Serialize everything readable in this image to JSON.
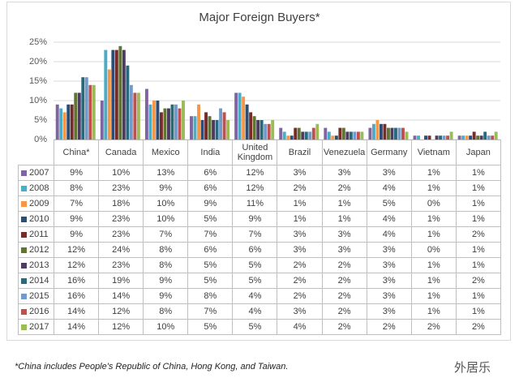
{
  "chart_data": {
    "type": "bar",
    "title": "Major Foreign Buyers*",
    "categories": [
      "China*",
      "Canada",
      "Mexico",
      "India",
      "United Kingdom",
      "Brazil",
      "Venezuela",
      "Germany",
      "Vietnam",
      "Japan"
    ],
    "series": [
      {
        "name": "2007",
        "color": "#8064a2",
        "values": [
          9,
          10,
          13,
          6,
          12,
          3,
          3,
          3,
          1,
          1
        ],
        "value_labels": [
          "9%",
          "10%",
          "13%",
          "6%",
          "12%",
          "3%",
          "3%",
          "3%",
          "1%",
          "1%"
        ]
      },
      {
        "name": "2008",
        "color": "#4bacc6",
        "values": [
          8,
          23,
          9,
          6,
          12,
          2,
          2,
          4,
          1,
          1
        ],
        "value_labels": [
          "8%",
          "23%",
          "9%",
          "6%",
          "12%",
          "2%",
          "2%",
          "4%",
          "1%",
          "1%"
        ]
      },
      {
        "name": "2009",
        "color": "#f79646",
        "values": [
          7,
          18,
          10,
          9,
          11,
          1,
          1,
          5,
          0,
          1
        ],
        "value_labels": [
          "7%",
          "18%",
          "10%",
          "9%",
          "11%",
          "1%",
          "1%",
          "5%",
          "0%",
          "1%"
        ]
      },
      {
        "name": "2010",
        "color": "#2c4d75",
        "values": [
          9,
          23,
          10,
          5,
          9,
          1,
          1,
          4,
          1,
          1
        ],
        "value_labels": [
          "9%",
          "23%",
          "10%",
          "5%",
          "9%",
          "1%",
          "1%",
          "4%",
          "1%",
          "1%"
        ]
      },
      {
        "name": "2011",
        "color": "#772c2a",
        "values": [
          9,
          23,
          7,
          7,
          7,
          3,
          3,
          4,
          1,
          2
        ],
        "value_labels": [
          "9%",
          "23%",
          "7%",
          "7%",
          "7%",
          "3%",
          "3%",
          "4%",
          "1%",
          "2%"
        ]
      },
      {
        "name": "2012",
        "color": "#5f7530",
        "values": [
          12,
          24,
          8,
          6,
          6,
          3,
          3,
          3,
          0,
          1
        ],
        "value_labels": [
          "12%",
          "24%",
          "8%",
          "6%",
          "6%",
          "3%",
          "3%",
          "3%",
          "0%",
          "1%"
        ]
      },
      {
        "name": "2013",
        "color": "#4d3b62",
        "values": [
          12,
          23,
          8,
          5,
          5,
          2,
          2,
          3,
          1,
          1
        ],
        "value_labels": [
          "12%",
          "23%",
          "8%",
          "5%",
          "5%",
          "2%",
          "2%",
          "3%",
          "1%",
          "1%"
        ]
      },
      {
        "name": "2014",
        "color": "#276a7c",
        "values": [
          16,
          19,
          9,
          5,
          5,
          2,
          2,
          3,
          1,
          2
        ],
        "value_labels": [
          "16%",
          "19%",
          "9%",
          "5%",
          "5%",
          "2%",
          "2%",
          "3%",
          "1%",
          "2%"
        ]
      },
      {
        "name": "2015",
        "color": "#729aca",
        "values": [
          16,
          14,
          9,
          8,
          4,
          2,
          2,
          3,
          1,
          1
        ],
        "value_labels": [
          "16%",
          "14%",
          "9%",
          "8%",
          "4%",
          "2%",
          "2%",
          "3%",
          "1%",
          "1%"
        ]
      },
      {
        "name": "2016",
        "color": "#c0504d",
        "values": [
          14,
          12,
          8,
          7,
          4,
          3,
          2,
          3,
          1,
          1
        ],
        "value_labels": [
          "14%",
          "12%",
          "8%",
          "7%",
          "4%",
          "3%",
          "2%",
          "3%",
          "1%",
          "1%"
        ]
      },
      {
        "name": "2017",
        "color": "#9bbb59",
        "values": [
          14,
          12,
          10,
          5,
          5,
          4,
          2,
          2,
          2,
          2
        ],
        "value_labels": [
          "14%",
          "12%",
          "10%",
          "5%",
          "5%",
          "4%",
          "2%",
          "2%",
          "2%",
          "2%"
        ]
      }
    ],
    "ylim": [
      0,
      25
    ],
    "yticks": [
      {
        "value": 0,
        "label": "0%"
      },
      {
        "value": 5,
        "label": "5%"
      },
      {
        "value": 10,
        "label": "10%"
      },
      {
        "value": 15,
        "label": "15%"
      },
      {
        "value": 20,
        "label": "20%"
      },
      {
        "value": 25,
        "label": "25%"
      }
    ],
    "grid": true,
    "footnote": "*China includes People's Republic of China, Hong Kong, and Taiwan.",
    "watermark": "外居乐"
  }
}
